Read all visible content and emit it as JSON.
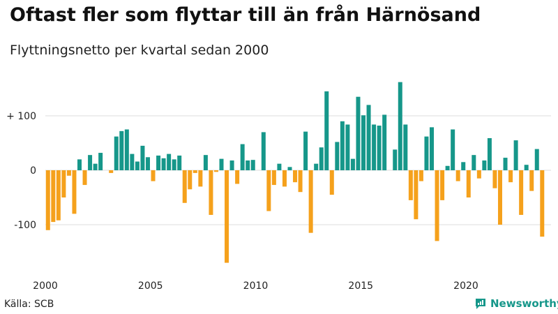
{
  "title": "Oftast fler som flyttar till än från Härnösand",
  "subtitle": "Flyttningsnetto per kvartal sedan 2000",
  "source": "Källa: SCB",
  "brand": "Newsworthy",
  "colors": {
    "positive": "#16978a",
    "negative": "#f5a11c",
    "grid": "#dddddd",
    "brand": "#16978a"
  },
  "chart_data": {
    "type": "bar",
    "x_start": 2000,
    "periods_per_year": 4,
    "x_ticks": [
      {
        "value": 2000,
        "label": "2000"
      },
      {
        "value": 2005,
        "label": "2005"
      },
      {
        "value": 2010,
        "label": "2010"
      },
      {
        "value": 2015,
        "label": "2015"
      },
      {
        "value": 2020,
        "label": "2020"
      }
    ],
    "y_ticks": [
      {
        "value": 100,
        "label": "+ 100"
      },
      {
        "value": 0,
        "label": "0"
      },
      {
        "value": -100,
        "label": "-100"
      }
    ],
    "ylim": [
      -170,
      160
    ],
    "values": [
      -110,
      -95,
      -92,
      -50,
      -10,
      -80,
      20,
      -27,
      28,
      12,
      32,
      0,
      -5,
      62,
      72,
      75,
      30,
      16,
      45,
      24,
      -20,
      27,
      22,
      30,
      20,
      27,
      -60,
      -35,
      -5,
      -30,
      28,
      -82,
      -3,
      21,
      -170,
      18,
      -25,
      48,
      18,
      19,
      0,
      70,
      -75,
      -27,
      12,
      -30,
      6,
      -22,
      -40,
      71,
      -115,
      12,
      42,
      145,
      -45,
      52,
      90,
      84,
      21,
      135,
      101,
      120,
      84,
      82,
      102,
      0,
      38,
      162,
      84,
      -55,
      -90,
      -20,
      62,
      79,
      -130,
      -55,
      8,
      75,
      -20,
      15,
      -50,
      28,
      -15,
      18,
      59,
      -33,
      -100,
      23,
      -22,
      55,
      -82,
      10,
      -38,
      39,
      -122
    ],
    "series_colors": {
      "positive": "#16978a",
      "negative": "#f5a11c"
    }
  }
}
